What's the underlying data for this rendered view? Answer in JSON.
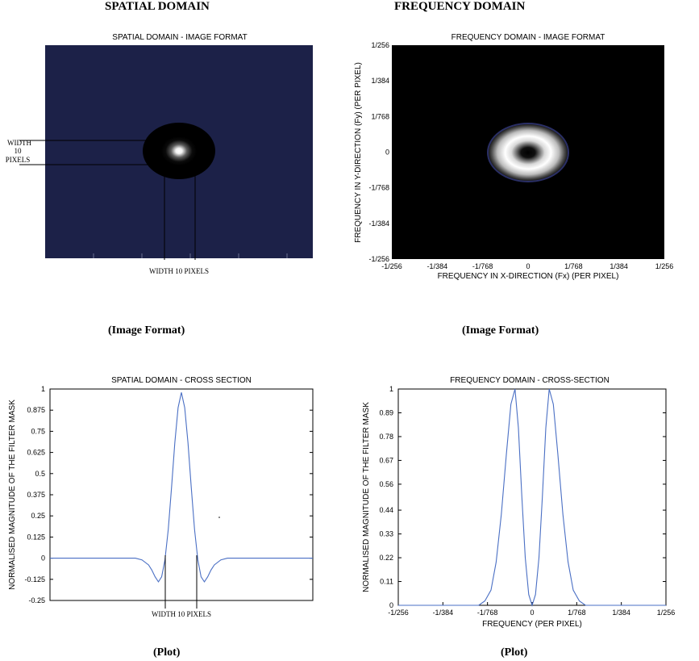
{
  "headings": {
    "left": "SPATIAL DOMAIN",
    "right": "FREQUENCY DOMAIN"
  },
  "captions": {
    "top_left": "(Image Format)",
    "top_right": "(Image Format)",
    "bottom_left": "(Plot)",
    "bottom_right": "(Plot)"
  },
  "colors": {
    "image_bg": "#1c2148",
    "freq_bg": "#000000",
    "curve": "#4a6fc4",
    "axis": "#000000"
  },
  "chart_data": [
    {
      "type": "heatmap",
      "title": "SPATIAL DOMAIN - IMAGE FORMAT",
      "xlabel": "",
      "ylabel": "",
      "description_visible": "dark navy field with a bright white centre surrounded by a black disc",
      "annotations": {
        "left_width": [
          "WIDTH",
          "10",
          "PIXELS"
        ],
        "bottom_width": "WIDTH 10 PIXELS"
      }
    },
    {
      "type": "heatmap",
      "title": "FREQUENCY DOMAIN - IMAGE FORMAT",
      "xlabel": "FREQUENCY IN X-DIRECTION (Fx) (PER PIXEL)",
      "ylabel": "FREQUENCY IN Y-DIRECTION (Fy) (PER PIXEL)",
      "xticks": [
        "-1/256",
        "-1/384",
        "-1/768",
        "0",
        "1/768",
        "1/384",
        "1/256"
      ],
      "yticks": [
        "1/256",
        "1/384",
        "1/768",
        "0",
        "-1/768",
        "-1/384",
        "-1/256"
      ],
      "x_range": [
        -0.00390625,
        0.00390625
      ],
      "y_range": [
        -0.00390625,
        0.00390625
      ]
    },
    {
      "type": "line",
      "title": "SPATIAL DOMAIN - CROSS SECTION",
      "xlabel": "",
      "ylabel": "NORMALISED MAGNITUDE OF THE FILTER MASK",
      "yticks": [
        "1",
        "0.875",
        "0.75",
        "0.625",
        "0.5",
        "0.375",
        "0.25",
        "0.125",
        "0",
        "-0.125",
        "-0.25"
      ],
      "ylim": [
        -0.25,
        1
      ],
      "xlim": [
        -40,
        40
      ],
      "x": [
        -40,
        -14,
        -12,
        -10,
        -9,
        -8,
        -7,
        -6,
        -5,
        -4,
        -3,
        -2,
        -1,
        0,
        1,
        2,
        3,
        4,
        5,
        6,
        7,
        8,
        9,
        10,
        12,
        14,
        40
      ],
      "y": [
        0,
        0,
        -0.01,
        -0.04,
        -0.07,
        -0.11,
        -0.14,
        -0.11,
        -0.01,
        0.17,
        0.42,
        0.68,
        0.89,
        0.98,
        0.89,
        0.68,
        0.42,
        0.17,
        -0.01,
        -0.11,
        -0.14,
        -0.11,
        -0.07,
        -0.04,
        -0.01,
        0,
        0
      ],
      "annotations": {
        "bottom_width": "WIDTH 10 PIXELS"
      }
    },
    {
      "type": "line",
      "title": "FREQUENCY DOMAIN - CROSS-SECTION",
      "xlabel": "FREQUENCY (PER PIXEL)",
      "ylabel": "NORMALISED MAGNITUDE OF THE FILTER MASK",
      "xticks": [
        "-1/256",
        "-1/384",
        "-1/768",
        "0",
        "1/768",
        "1/384",
        "1/256"
      ],
      "yticks": [
        "1",
        "0.89",
        "0.78",
        "0.67",
        "0.56",
        "0.44",
        "0.33",
        "0.22",
        "0.11",
        "0"
      ],
      "ylim": [
        0,
        1
      ],
      "xlim": [
        -0.00390625,
        0.00390625
      ],
      "x": [
        -0.00390625,
        -0.00156,
        -0.00138,
        -0.0012,
        -0.00105,
        -0.0009,
        -0.00075,
        -0.00062,
        -0.0005,
        -0.0004,
        -0.0003,
        -0.0002,
        -0.0001,
        0,
        0.0001,
        0.0002,
        0.0003,
        0.0004,
        0.0005,
        0.00062,
        0.00075,
        0.0009,
        0.00105,
        0.0012,
        0.00138,
        0.00156,
        0.00390625
      ],
      "y": [
        0,
        0,
        0.02,
        0.07,
        0.2,
        0.42,
        0.7,
        0.93,
        1,
        0.82,
        0.5,
        0.22,
        0.05,
        0,
        0.05,
        0.22,
        0.5,
        0.82,
        1,
        0.93,
        0.7,
        0.42,
        0.2,
        0.07,
        0.02,
        0,
        0
      ]
    }
  ]
}
